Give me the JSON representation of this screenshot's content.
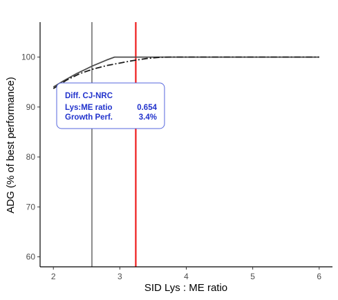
{
  "chart_data": {
    "type": "line",
    "xlabel": "SID Lys : ME ratio",
    "ylabel": "ADG (% of best performance)",
    "xlim": [
      1.8,
      6.2
    ],
    "ylim": [
      58.0,
      107.0
    ],
    "x_ticks": [
      2,
      3,
      4,
      5,
      6
    ],
    "y_ticks": [
      60,
      70,
      80,
      90,
      100
    ],
    "grid": false,
    "series": [
      {
        "style": "solid",
        "color": "#4d4d4d",
        "x": [
          2.0,
          2.15,
          2.35,
          2.6,
          2.8,
          2.92,
          3.2,
          4.0,
          5.0,
          6.0
        ],
        "y": [
          94.0,
          95.2,
          96.7,
          98.3,
          99.4,
          100.0,
          100.0,
          100.0,
          100.0,
          100.0
        ]
      },
      {
        "style": "dashdot",
        "color": "#1a1a1a",
        "x": [
          2.0,
          2.2,
          2.4,
          2.6,
          2.8,
          3.0,
          3.2,
          3.4,
          3.6,
          3.8,
          4.0,
          5.0,
          6.0
        ],
        "y": [
          93.7,
          95.4,
          96.7,
          97.6,
          98.3,
          98.8,
          99.3,
          99.7,
          99.95,
          100.0,
          100.0,
          100.0,
          100.0
        ]
      }
    ],
    "vlines": [
      {
        "x": 2.58,
        "color": "#1a1a1a"
      },
      {
        "x": 3.24,
        "color": "#ee1c1c"
      }
    ],
    "annotation": {
      "title": "Diff. CJ-NRC",
      "rows": [
        {
          "label": "Lys:ME ratio",
          "value": "0.654"
        },
        {
          "label": "Growth Perf.",
          "value": "3.4%"
        }
      ],
      "text_color": "#2233cc",
      "border_color": "#5566dd"
    }
  }
}
